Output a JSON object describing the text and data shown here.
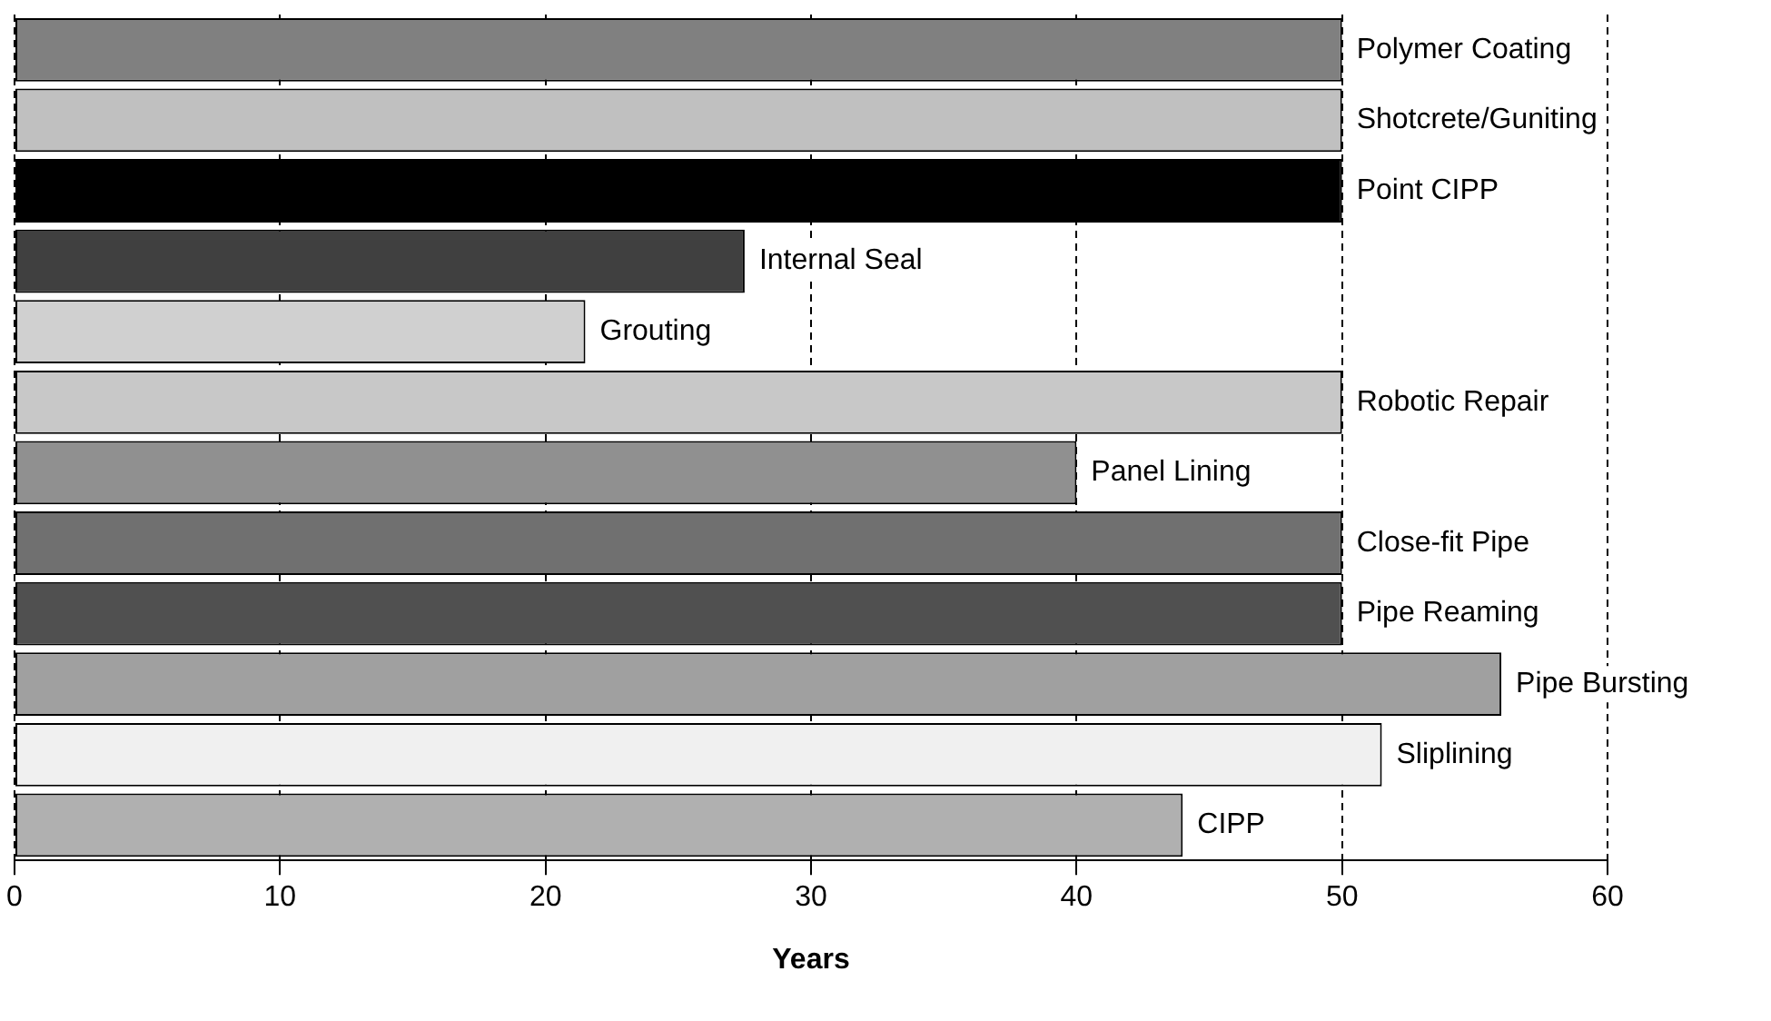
{
  "chart_data": {
    "type": "bar",
    "orientation": "horizontal",
    "xlabel": "Years",
    "categories": [
      "Polymer Coating",
      "Shotcrete/Guniting",
      "Point CIPP",
      "Internal Seal",
      "Grouting",
      "Robotic Repair",
      "Panel Lining",
      "Close-fit Pipe",
      "Pipe Reaming",
      "Pipe Bursting",
      "Sliplining",
      "CIPP"
    ],
    "values": [
      50,
      50,
      50,
      27.5,
      21.5,
      50,
      40,
      50,
      50,
      56,
      51.5,
      44
    ],
    "colors": [
      "#808080",
      "#c0c0c0",
      "#000000",
      "#404040",
      "#d0d0d0",
      "#c8c8c8",
      "#909090",
      "#707070",
      "#505050",
      "#a0a0a0",
      "#f0f0f0",
      "#b0b0b0"
    ],
    "xlim": [
      0,
      60
    ],
    "xticks": [
      0,
      10,
      20,
      30,
      40,
      50,
      60
    ],
    "grid": "x",
    "tick_labels": "x",
    "legend": false
  }
}
